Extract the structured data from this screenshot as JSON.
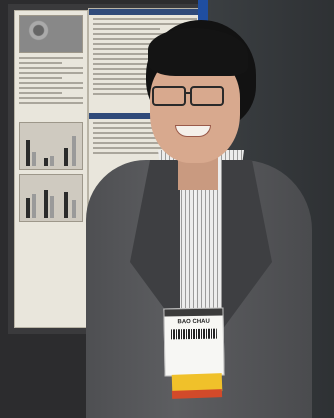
{
  "photo": {
    "subject": "",
    "badge": {
      "name": "BAO CHAU",
      "header": "",
      "subtitle": ""
    }
  }
}
